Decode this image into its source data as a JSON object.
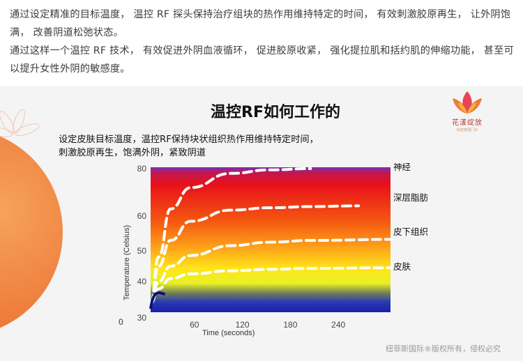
{
  "intro": {
    "line1": "通过设定精准的目标温度， 温控 RF 探头保持治疗组块的热作用维持特定的时间， 有效刺激胶原再生， 让外阴饱满， 改善阴道松弛状态。",
    "line2": "通过这样一个温控 RF 技术， 有效促进外阴血液循环， 促进胶原收紧， 强化提拉肌和括约肌的伸缩功能， 甚至可以提升女性外阴的敏感度。"
  },
  "logo": {
    "name": "花漾绽放",
    "sub": "私密丽蒲门诊"
  },
  "heading": "温控RF如何工作的",
  "description": {
    "line1": "设定皮肤目标温度，温控RF保持块状组织热作用维持特定时间，",
    "line2": "刺激胶原再生，饱满外阴，紧致阴道"
  },
  "watermark": "纽菲斯国际®版权所有，侵权必究",
  "colors": {
    "hot": "#e8111a",
    "warm": "#ffd400",
    "cool": "#1a2db5",
    "curve": "#ffffff"
  },
  "chart_data": {
    "type": "line",
    "title": "温控RF如何工作的",
    "xlabel": "Time (seconds)",
    "ylabel": "Temperature (Celsius)",
    "xlim": [
      0,
      300
    ],
    "ylim": [
      30,
      82
    ],
    "x_ticks": [
      60,
      120,
      180,
      240
    ],
    "x_origin_label": "0",
    "y_ticks": [
      30,
      40,
      50,
      60,
      80
    ],
    "grid": false,
    "series": [
      {
        "name": "神经",
        "x": [
          0,
          10,
          25,
          50,
          100,
          150,
          200
        ],
        "y": [
          34,
          48,
          63,
          72,
          78,
          79.5,
          80
        ]
      },
      {
        "name": "深层脂肪",
        "x": [
          0,
          10,
          25,
          50,
          100,
          150,
          200,
          260
        ],
        "y": [
          34,
          45,
          53,
          58.5,
          62.5,
          63.5,
          64,
          64.3
        ]
      },
      {
        "name": "皮下组织",
        "x": [
          0,
          10,
          25,
          50,
          100,
          150,
          200,
          300
        ],
        "y": [
          34,
          40,
          45,
          48.5,
          51.5,
          52.5,
          53,
          53.3
        ]
      },
      {
        "name": "皮肤",
        "x": [
          0,
          10,
          25,
          50,
          100,
          150,
          200,
          300
        ],
        "y": [
          34,
          38,
          41,
          42.5,
          43.5,
          44,
          44.3,
          44.5
        ]
      }
    ]
  }
}
